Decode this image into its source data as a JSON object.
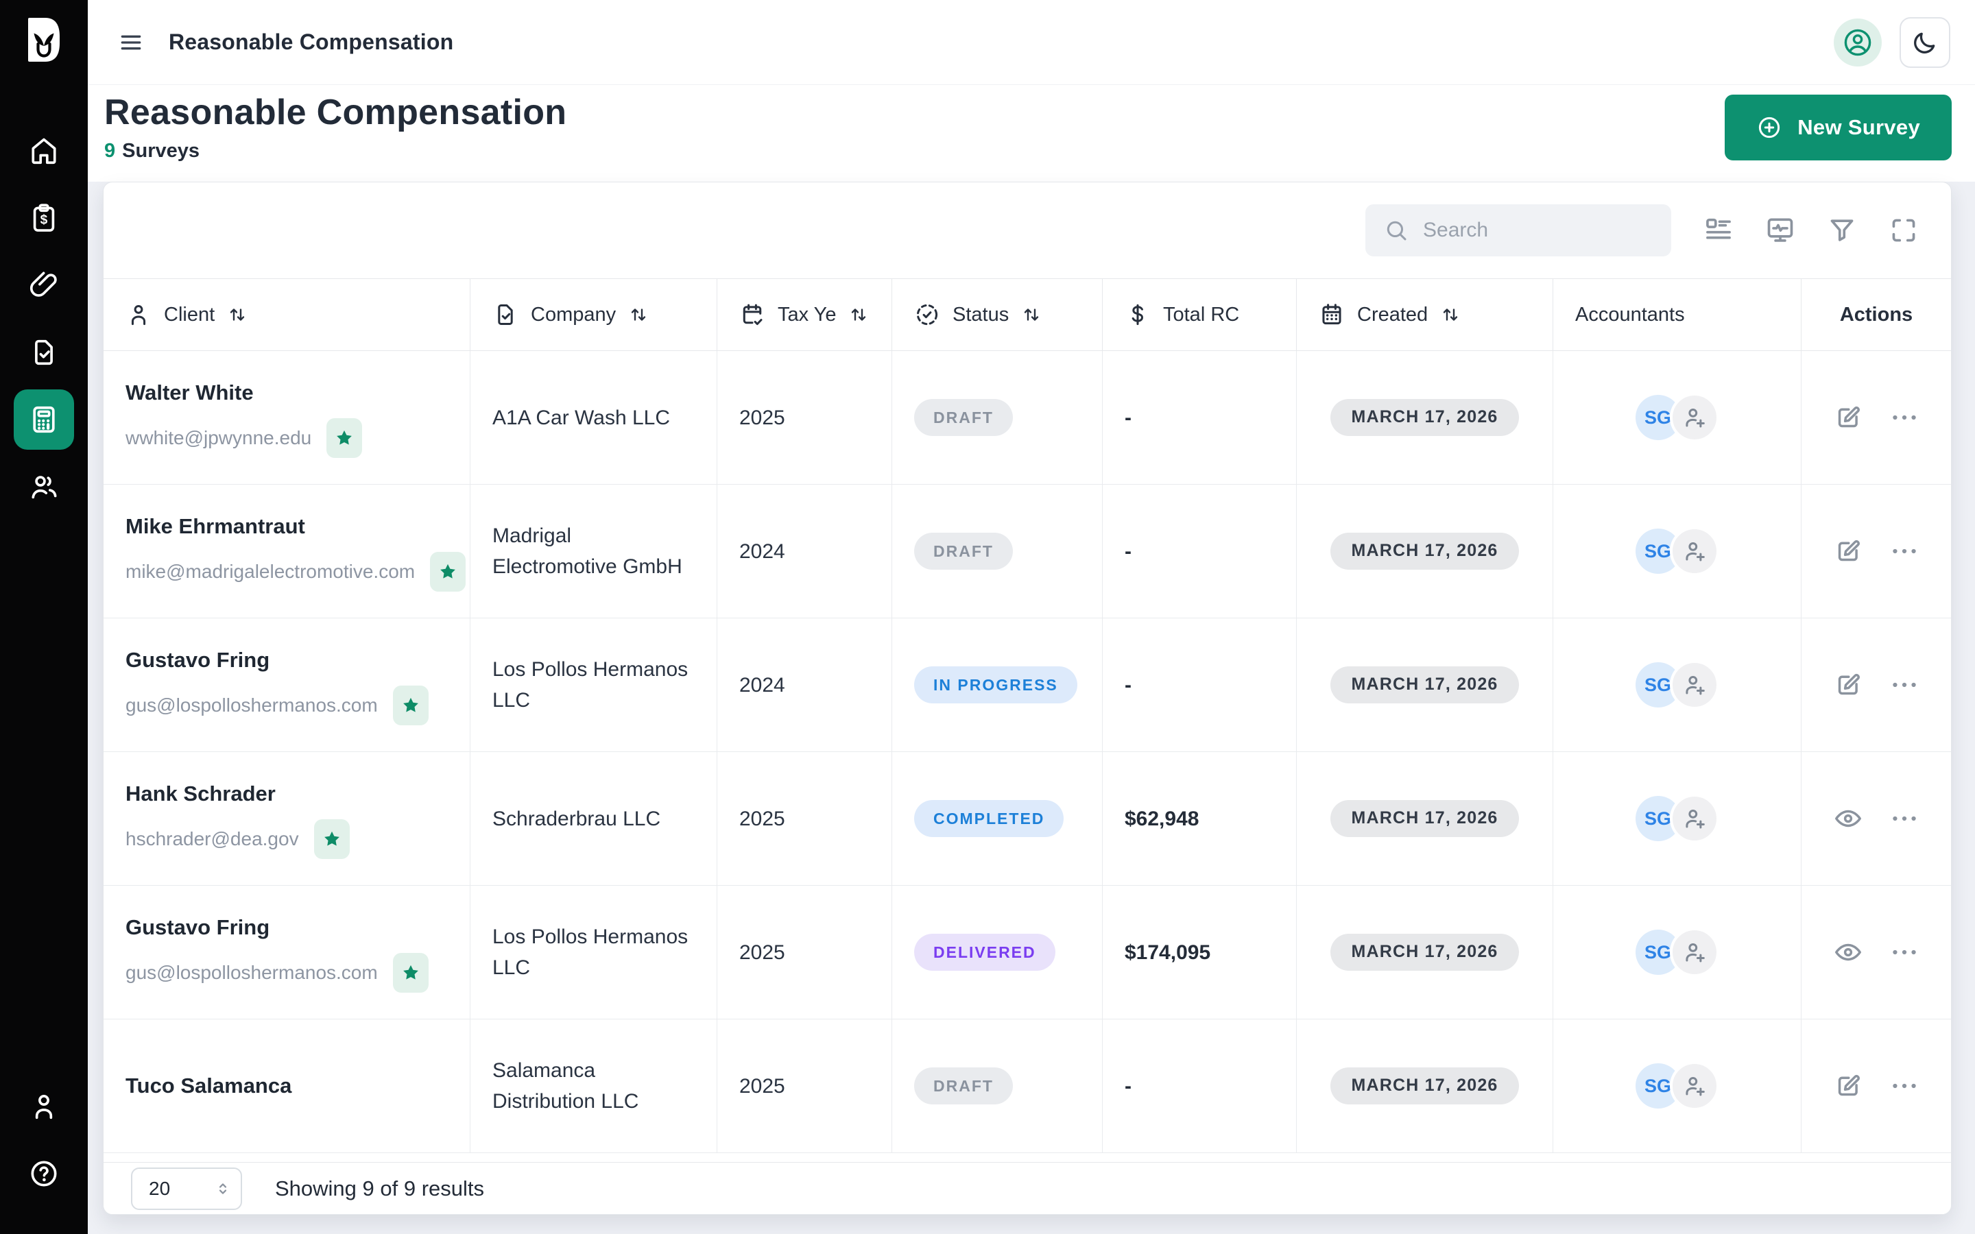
{
  "topbar": {
    "title": "Reasonable Compensation"
  },
  "header": {
    "title": "Reasonable Compensation",
    "count": "9",
    "count_label": "Surveys",
    "new_survey_label": "New Survey"
  },
  "sidebar": {
    "nav_items": [
      {
        "id": "home",
        "icon": "home-icon",
        "active": false
      },
      {
        "id": "surveys",
        "icon": "clipboard-dollar-icon",
        "active": false
      },
      {
        "id": "attachments",
        "icon": "paperclip-icon",
        "active": false
      },
      {
        "id": "documents",
        "icon": "file-check-icon",
        "active": false
      },
      {
        "id": "calculator",
        "icon": "calculator-icon",
        "active": true
      },
      {
        "id": "clients",
        "icon": "users-icon",
        "active": false
      }
    ],
    "bottom_items": [
      {
        "id": "account",
        "icon": "user-icon"
      },
      {
        "id": "help",
        "icon": "help-circle-icon"
      }
    ]
  },
  "toolbar": {
    "search_placeholder": "Search",
    "icons": [
      {
        "id": "layout",
        "icon": "table-layout-icon"
      },
      {
        "id": "reports",
        "icon": "monitor-chart-icon"
      },
      {
        "id": "filter",
        "icon": "filter-icon"
      },
      {
        "id": "fullscreen",
        "icon": "fullscreen-icon"
      }
    ]
  },
  "table": {
    "columns": [
      {
        "id": "client",
        "label": "Client",
        "icon": "person-icon",
        "sortable": true
      },
      {
        "id": "company",
        "label": "Company",
        "icon": "file-check-icon",
        "sortable": true
      },
      {
        "id": "tax_year",
        "label": "Tax Ye",
        "icon": "calendar-check-icon",
        "sortable": true
      },
      {
        "id": "status",
        "label": "Status",
        "icon": "status-circle-icon",
        "sortable": true
      },
      {
        "id": "total_rc",
        "label": "Total RC",
        "icon": "dollar-icon",
        "sortable": false
      },
      {
        "id": "created",
        "label": "Created",
        "icon": "calendar-icon",
        "sortable": true
      },
      {
        "id": "accountants",
        "label": "Accountants",
        "icon": null,
        "sortable": false
      },
      {
        "id": "actions",
        "label": "Actions",
        "icon": null,
        "sortable": false
      }
    ],
    "rows": [
      {
        "client_name": "Walter White",
        "client_email": "wwhite@jpwynne.edu",
        "starred": true,
        "company": "A1A Car Wash LLC",
        "tax_year": "2025",
        "status": {
          "label": "DRAFT",
          "variant": "draft"
        },
        "total_rc": "-",
        "created": "MARCH 17, 2026",
        "accountants": [
          "SG"
        ],
        "actions": [
          "edit",
          "menu"
        ]
      },
      {
        "client_name": "Mike Ehrmantraut",
        "client_email": "mike@madrigalelectromotive.com",
        "starred": true,
        "company": "Madrigal Electromotive GmbH",
        "tax_year": "2024",
        "status": {
          "label": "DRAFT",
          "variant": "draft"
        },
        "total_rc": "-",
        "created": "MARCH 17, 2026",
        "accountants": [
          "SG"
        ],
        "actions": [
          "edit",
          "menu"
        ]
      },
      {
        "client_name": "Gustavo Fring",
        "client_email": "gus@lospolloshermanos.com",
        "starred": true,
        "company": "Los Pollos Hermanos LLC",
        "tax_year": "2024",
        "status": {
          "label": "IN PROGRESS",
          "variant": "in_progress"
        },
        "total_rc": "-",
        "created": "MARCH 17, 2026",
        "accountants": [
          "SG"
        ],
        "actions": [
          "edit",
          "menu"
        ]
      },
      {
        "client_name": "Hank Schrader",
        "client_email": "hschrader@dea.gov",
        "starred": true,
        "company": "Schraderbrau LLC",
        "tax_year": "2025",
        "status": {
          "label": "COMPLETED",
          "variant": "completed"
        },
        "total_rc": "$62,948",
        "created": "MARCH 17, 2026",
        "accountants": [
          "SG"
        ],
        "actions": [
          "view",
          "menu"
        ]
      },
      {
        "client_name": "Gustavo Fring",
        "client_email": "gus@lospolloshermanos.com",
        "starred": true,
        "company": "Los Pollos Hermanos LLC",
        "tax_year": "2025",
        "status": {
          "label": "DELIVERED",
          "variant": "delivered"
        },
        "total_rc": "$174,095",
        "created": "MARCH 17, 2026",
        "accountants": [
          "SG"
        ],
        "actions": [
          "view",
          "menu"
        ]
      },
      {
        "client_name": "Tuco Salamanca",
        "client_email": null,
        "starred": false,
        "company": "Salamanca Distribution LLC",
        "tax_year": "2025",
        "status": {
          "label": "DRAFT",
          "variant": "draft"
        },
        "total_rc": "-",
        "created": "MARCH 17, 2026",
        "accountants": [
          "SG"
        ],
        "actions": [
          "edit",
          "menu"
        ]
      }
    ]
  },
  "footer": {
    "page_size": "20",
    "summary": "Showing 9 of 9 results"
  },
  "colors": {
    "accent": "#0d9170",
    "accent_light": "#e2f1ea",
    "sidebar_bg": "#060607",
    "page_bg": "#eef0f5",
    "status_draft_text": "#8a929e",
    "status_draft_bg": "#e9ebee",
    "status_blue_text": "#1d80d8",
    "status_blue_bg": "#ddeafb",
    "status_purple_text": "#7a3df0",
    "status_purple_bg": "#e9e2fb",
    "avatar_blue_text": "#2e83e6",
    "avatar_blue_bg": "#dcebfb",
    "date_pill_bg": "#e7e8ea"
  }
}
